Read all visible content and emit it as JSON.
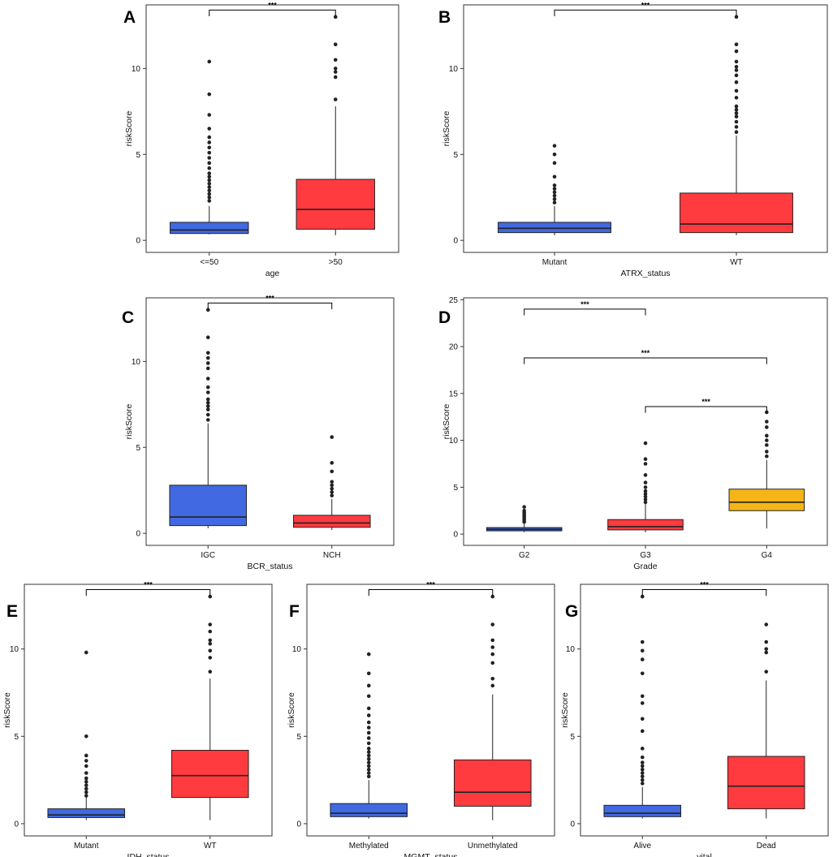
{
  "figure": {
    "title": ""
  },
  "colors": {
    "blue": "#4169E1",
    "red": "#FF3B3F",
    "gold": "#F5B417",
    "outlier": "#222222",
    "frame": "#333333"
  },
  "chart_data": [
    {
      "id": "A",
      "type": "box",
      "panel_label": "A",
      "xlabel": "age",
      "ylabel": "riskScore",
      "ylim": [
        -0.7,
        13.7
      ],
      "yticks": [
        0,
        5,
        10
      ],
      "categories": [
        "<=50",
        ">50"
      ],
      "boxes": [
        {
          "category": "<=50",
          "color": "blue",
          "min": 0.35,
          "q1": 0.4,
          "median": 0.6,
          "q3": 1.05,
          "max": 2.0,
          "outliers": [
            2.3,
            2.5,
            2.7,
            2.9,
            3.1,
            3.3,
            3.5,
            3.7,
            3.9,
            4.2,
            4.5,
            4.8,
            5.1,
            5.4,
            5.7,
            6.0,
            6.5,
            7.3,
            8.5,
            10.4
          ]
        },
        {
          "category": ">50",
          "color": "red",
          "min": 0.3,
          "q1": 0.65,
          "median": 1.8,
          "q3": 3.55,
          "max": 7.8,
          "outliers": [
            8.2,
            9.5,
            9.8,
            10.0,
            10.5,
            11.4,
            13.0
          ]
        }
      ],
      "comparisons": [
        {
          "from": "<=50",
          "to": ">50",
          "y": 13.4,
          "label": "***"
        }
      ]
    },
    {
      "id": "B",
      "type": "box",
      "panel_label": "B",
      "xlabel": "ATRX_status",
      "ylabel": "riskScore",
      "ylim": [
        -0.7,
        13.7
      ],
      "yticks": [
        0,
        5,
        10
      ],
      "categories": [
        "Mutant",
        "WT"
      ],
      "boxes": [
        {
          "category": "Mutant",
          "color": "blue",
          "min": 0.3,
          "q1": 0.45,
          "median": 0.7,
          "q3": 1.05,
          "max": 2.0,
          "outliers": [
            2.2,
            2.4,
            2.6,
            2.8,
            3.0,
            3.2,
            3.7,
            4.5,
            5.0,
            5.5
          ]
        },
        {
          "category": "WT",
          "color": "red",
          "min": 0.3,
          "q1": 0.45,
          "median": 0.95,
          "q3": 2.75,
          "max": 6.1,
          "outliers": [
            6.3,
            6.6,
            6.9,
            7.2,
            7.4,
            7.6,
            7.8,
            8.3,
            8.7,
            9.2,
            9.6,
            9.9,
            10.1,
            10.4,
            11.0,
            11.4,
            13.0
          ]
        }
      ],
      "comparisons": [
        {
          "from": "Mutant",
          "to": "WT",
          "y": 13.4,
          "label": "***"
        }
      ]
    },
    {
      "id": "C",
      "type": "box",
      "panel_label": "C",
      "xlabel": "BCR_status",
      "ylabel": "riskScore",
      "ylim": [
        -0.7,
        13.7
      ],
      "yticks": [
        0,
        5,
        10
      ],
      "categories": [
        "IGC",
        "NCH"
      ],
      "boxes": [
        {
          "category": "IGC",
          "color": "blue",
          "min": 0.3,
          "q1": 0.45,
          "median": 0.95,
          "q3": 2.8,
          "max": 6.4,
          "outliers": [
            6.6,
            6.9,
            7.2,
            7.4,
            7.6,
            7.8,
            8.2,
            8.5,
            9.0,
            9.6,
            9.9,
            10.2,
            10.5,
            11.4,
            13.0
          ]
        },
        {
          "category": "NCH",
          "color": "red",
          "min": 0.2,
          "q1": 0.35,
          "median": 0.6,
          "q3": 1.05,
          "max": 2.0,
          "outliers": [
            2.2,
            2.4,
            2.6,
            2.8,
            3.0,
            3.6,
            4.1,
            5.6
          ]
        }
      ],
      "comparisons": [
        {
          "from": "IGC",
          "to": "NCH",
          "y": 13.4,
          "label": "***"
        }
      ]
    },
    {
      "id": "D",
      "type": "box",
      "panel_label": "D",
      "xlabel": "Grade",
      "ylabel": "riskScore",
      "ylim": [
        -1.2,
        25.2
      ],
      "yticks": [
        0,
        5,
        10,
        15,
        20,
        25
      ],
      "categories": [
        "G2",
        "G3",
        "G4"
      ],
      "boxes": [
        {
          "category": "G2",
          "color": "blue",
          "min": 0.2,
          "q1": 0.35,
          "median": 0.5,
          "q3": 0.7,
          "max": 1.2,
          "outliers": [
            1.3,
            1.5,
            1.7,
            1.9,
            2.1,
            2.3,
            2.5,
            2.9
          ]
        },
        {
          "category": "G3",
          "color": "red",
          "min": 0.2,
          "q1": 0.45,
          "median": 0.8,
          "q3": 1.55,
          "max": 3.2,
          "outliers": [
            3.4,
            3.7,
            4.0,
            4.3,
            4.6,
            5.0,
            5.5,
            6.3,
            7.5,
            8.0,
            9.7
          ]
        },
        {
          "category": "G4",
          "color": "gold",
          "min": 0.6,
          "q1": 2.5,
          "median": 3.4,
          "q3": 4.8,
          "max": 7.9,
          "outliers": [
            8.3,
            8.8,
            9.5,
            10.0,
            10.5,
            11.4,
            12.0,
            13.0
          ]
        }
      ],
      "comparisons": [
        {
          "from": "G2",
          "to": "G3",
          "y": 24.0,
          "label": "***"
        },
        {
          "from": "G2",
          "to": "G4",
          "y": 18.8,
          "label": "***"
        },
        {
          "from": "G3",
          "to": "G4",
          "y": 13.6,
          "label": "***"
        }
      ]
    },
    {
      "id": "E",
      "type": "box",
      "panel_label": "E",
      "xlabel": "IDH_status",
      "ylabel": "riskScore",
      "ylim": [
        -0.7,
        13.7
      ],
      "yticks": [
        0,
        5,
        10
      ],
      "categories": [
        "Mutant",
        "WT"
      ],
      "boxes": [
        {
          "category": "Mutant",
          "color": "blue",
          "min": 0.2,
          "q1": 0.35,
          "median": 0.5,
          "q3": 0.85,
          "max": 1.5,
          "outliers": [
            1.6,
            1.8,
            2.0,
            2.2,
            2.4,
            2.6,
            2.9,
            3.3,
            3.6,
            3.9,
            5.0,
            9.8
          ]
        },
        {
          "category": "WT",
          "color": "red",
          "min": 0.2,
          "q1": 1.5,
          "median": 2.75,
          "q3": 4.2,
          "max": 8.3,
          "outliers": [
            8.7,
            9.5,
            9.9,
            10.3,
            10.5,
            11.0,
            11.4,
            13.0
          ]
        }
      ],
      "comparisons": [
        {
          "from": "Mutant",
          "to": "WT",
          "y": 13.4,
          "label": "***"
        }
      ]
    },
    {
      "id": "F",
      "type": "box",
      "panel_label": "F",
      "xlabel": "MGMT_status",
      "ylabel": "riskScore",
      "ylim": [
        -0.7,
        13.7
      ],
      "yticks": [
        0,
        5,
        10
      ],
      "categories": [
        "Methylated",
        "Unmethylated"
      ],
      "boxes": [
        {
          "category": "Methylated",
          "color": "blue",
          "min": 0.3,
          "q1": 0.4,
          "median": 0.6,
          "q3": 1.15,
          "max": 2.5,
          "outliers": [
            2.7,
            2.9,
            3.1,
            3.3,
            3.5,
            3.7,
            3.9,
            4.1,
            4.3,
            4.6,
            4.9,
            5.2,
            5.5,
            5.8,
            6.2,
            6.6,
            7.3,
            7.9,
            8.6,
            9.7
          ]
        },
        {
          "category": "Unmethylated",
          "color": "red",
          "min": 0.2,
          "q1": 1.0,
          "median": 1.8,
          "q3": 3.65,
          "max": 7.4,
          "outliers": [
            7.9,
            8.3,
            9.2,
            9.7,
            10.1,
            10.5,
            11.4,
            13.0
          ]
        }
      ],
      "comparisons": [
        {
          "from": "Methylated",
          "to": "Unmethylated",
          "y": 13.4,
          "label": "***"
        }
      ]
    },
    {
      "id": "G",
      "type": "box",
      "panel_label": "G",
      "xlabel": "vital",
      "ylabel": "riskScore",
      "ylim": [
        -0.7,
        13.7
      ],
      "yticks": [
        0,
        5,
        10
      ],
      "categories": [
        "Alive",
        "Dead"
      ],
      "boxes": [
        {
          "category": "Alive",
          "color": "blue",
          "min": 0.3,
          "q1": 0.4,
          "median": 0.6,
          "q3": 1.05,
          "max": 2.1,
          "outliers": [
            2.3,
            2.5,
            2.7,
            2.9,
            3.1,
            3.3,
            3.5,
            3.8,
            4.3,
            5.3,
            6.0,
            6.9,
            7.3,
            8.6,
            9.4,
            9.9,
            10.4,
            13.0
          ]
        },
        {
          "category": "Dead",
          "color": "red",
          "min": 0.3,
          "q1": 0.85,
          "median": 2.15,
          "q3": 3.85,
          "max": 8.2,
          "outliers": [
            8.7,
            9.8,
            10.0,
            10.4,
            11.4
          ]
        }
      ],
      "comparisons": [
        {
          "from": "Alive",
          "to": "Dead",
          "y": 13.4,
          "label": "***"
        }
      ]
    }
  ]
}
